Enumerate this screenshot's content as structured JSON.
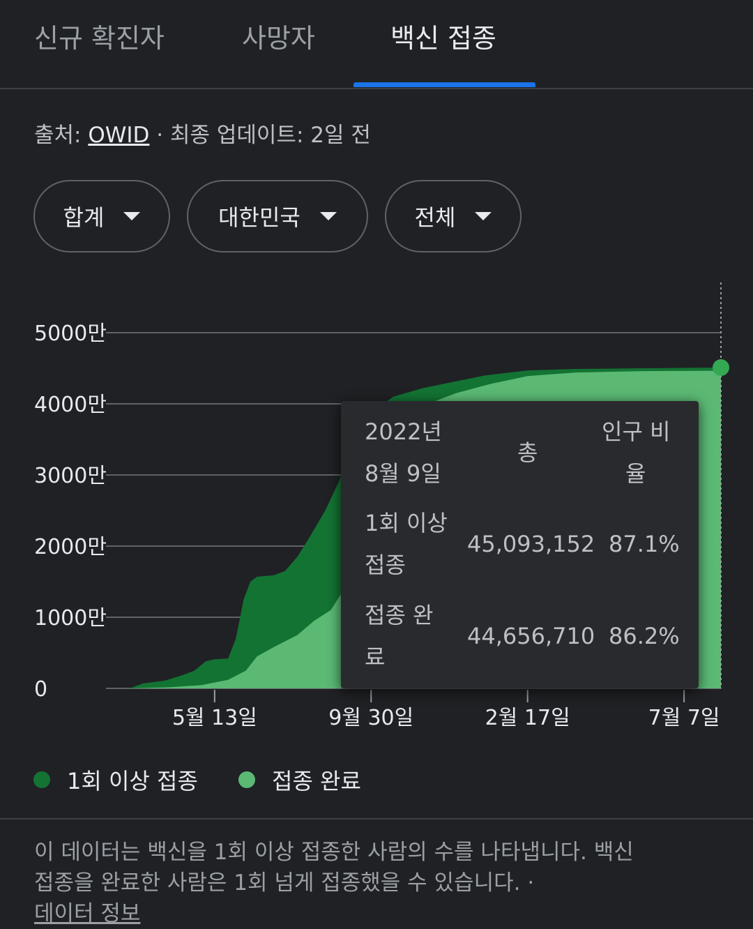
{
  "tabs": [
    {
      "label": "신규 확진자",
      "active": false
    },
    {
      "label": "사망자",
      "active": false
    },
    {
      "label": "백신 접종",
      "active": true
    }
  ],
  "source": {
    "prefix": "출처: ",
    "link": "OWID",
    "suffix": " · 최종 업데이트: 2일 전"
  },
  "filters": [
    {
      "label": "합계"
    },
    {
      "label": "대한민국"
    },
    {
      "label": "전체"
    }
  ],
  "colors": {
    "at_least_one": "#137333",
    "fully_vaccinated": "#5bb974",
    "background": "#202124"
  },
  "chart_data": {
    "type": "area",
    "y_ticks": [
      {
        "value": 0,
        "label": "0"
      },
      {
        "value": 10000000,
        "label": "1000만"
      },
      {
        "value": 20000000,
        "label": "2000만"
      },
      {
        "value": 30000000,
        "label": "3000만"
      },
      {
        "value": 40000000,
        "label": "4000만"
      },
      {
        "value": 50000000,
        "label": "5000만"
      }
    ],
    "ylim": [
      0,
      50000000
    ],
    "xlim": [
      "2021-02-26",
      "2022-08-09"
    ],
    "x_ticks": [
      {
        "date": "2021-05-13",
        "label": "5월 13일"
      },
      {
        "date": "2021-09-30",
        "label": "9월 30일"
      },
      {
        "date": "2022-02-17",
        "label": "2월 17일"
      },
      {
        "date": "2022-07-07",
        "label": "7월 7일"
      }
    ],
    "grid": true,
    "legend": "bottom",
    "series": [
      {
        "name": "1회 이상 접종",
        "color": "#137333",
        "points": [
          [
            "2021-02-26",
            0
          ],
          [
            "2021-03-10",
            700000
          ],
          [
            "2021-03-30",
            1100000
          ],
          [
            "2021-04-15",
            1900000
          ],
          [
            "2021-04-25",
            2500000
          ],
          [
            "2021-05-05",
            3800000
          ],
          [
            "2021-05-13",
            4100000
          ],
          [
            "2021-05-25",
            4200000
          ],
          [
            "2021-06-01",
            7000000
          ],
          [
            "2021-06-08",
            12500000
          ],
          [
            "2021-06-14",
            15000000
          ],
          [
            "2021-06-20",
            15700000
          ],
          [
            "2021-07-05",
            15900000
          ],
          [
            "2021-07-15",
            16500000
          ],
          [
            "2021-07-26",
            18500000
          ],
          [
            "2021-08-05",
            21000000
          ],
          [
            "2021-08-20",
            25000000
          ],
          [
            "2021-09-01",
            29000000
          ],
          [
            "2021-09-15",
            35000000
          ],
          [
            "2021-10-01",
            39000000
          ],
          [
            "2021-10-20",
            41000000
          ],
          [
            "2021-11-15",
            42200000
          ],
          [
            "2021-12-10",
            43000000
          ],
          [
            "2022-01-10",
            44000000
          ],
          [
            "2022-02-17",
            44700000
          ],
          [
            "2022-04-01",
            44900000
          ],
          [
            "2022-06-01",
            45000000
          ],
          [
            "2022-08-09",
            45093152
          ]
        ]
      },
      {
        "name": "접종 완료",
        "color": "#5bb974",
        "points": [
          [
            "2021-02-26",
            0
          ],
          [
            "2021-04-01",
            150000
          ],
          [
            "2021-05-01",
            450000
          ],
          [
            "2021-05-25",
            1200000
          ],
          [
            "2021-06-10",
            2500000
          ],
          [
            "2021-06-20",
            4500000
          ],
          [
            "2021-07-05",
            5800000
          ],
          [
            "2021-07-26",
            7500000
          ],
          [
            "2021-08-10",
            9500000
          ],
          [
            "2021-08-25",
            11000000
          ],
          [
            "2021-09-10",
            15000000
          ],
          [
            "2021-09-30",
            22000000
          ],
          [
            "2021-10-15",
            30000000
          ],
          [
            "2021-10-31",
            37000000
          ],
          [
            "2021-11-20",
            40000000
          ],
          [
            "2021-12-15",
            41500000
          ],
          [
            "2022-01-15",
            42800000
          ],
          [
            "2022-02-17",
            43900000
          ],
          [
            "2022-04-01",
            44400000
          ],
          [
            "2022-06-01",
            44600000
          ],
          [
            "2022-08-09",
            44656710
          ]
        ]
      }
    ]
  },
  "tooltip": {
    "date_line1": "2022년",
    "date_line2": "8월 9일",
    "col_total": "총",
    "col_ratio_line1": "인구 비",
    "col_ratio_line2": "율",
    "rows": [
      {
        "label_line1": "1회 이상",
        "label_line2": "접종",
        "total": "45,093,152",
        "ratio": "87.1%"
      },
      {
        "label_line1": "접종 완",
        "label_line2": "료",
        "total": "44,656,710",
        "ratio": "86.2%"
      }
    ]
  },
  "footnote": {
    "line1": "이 데이터는 백신을 1회 이상 접종한 사람의 수를 나타냅니다. 백신",
    "line2": "접종을 완료한 사람은 1회 넘게 접종했을 수 있습니다. ·",
    "link": "데이터 정보"
  }
}
